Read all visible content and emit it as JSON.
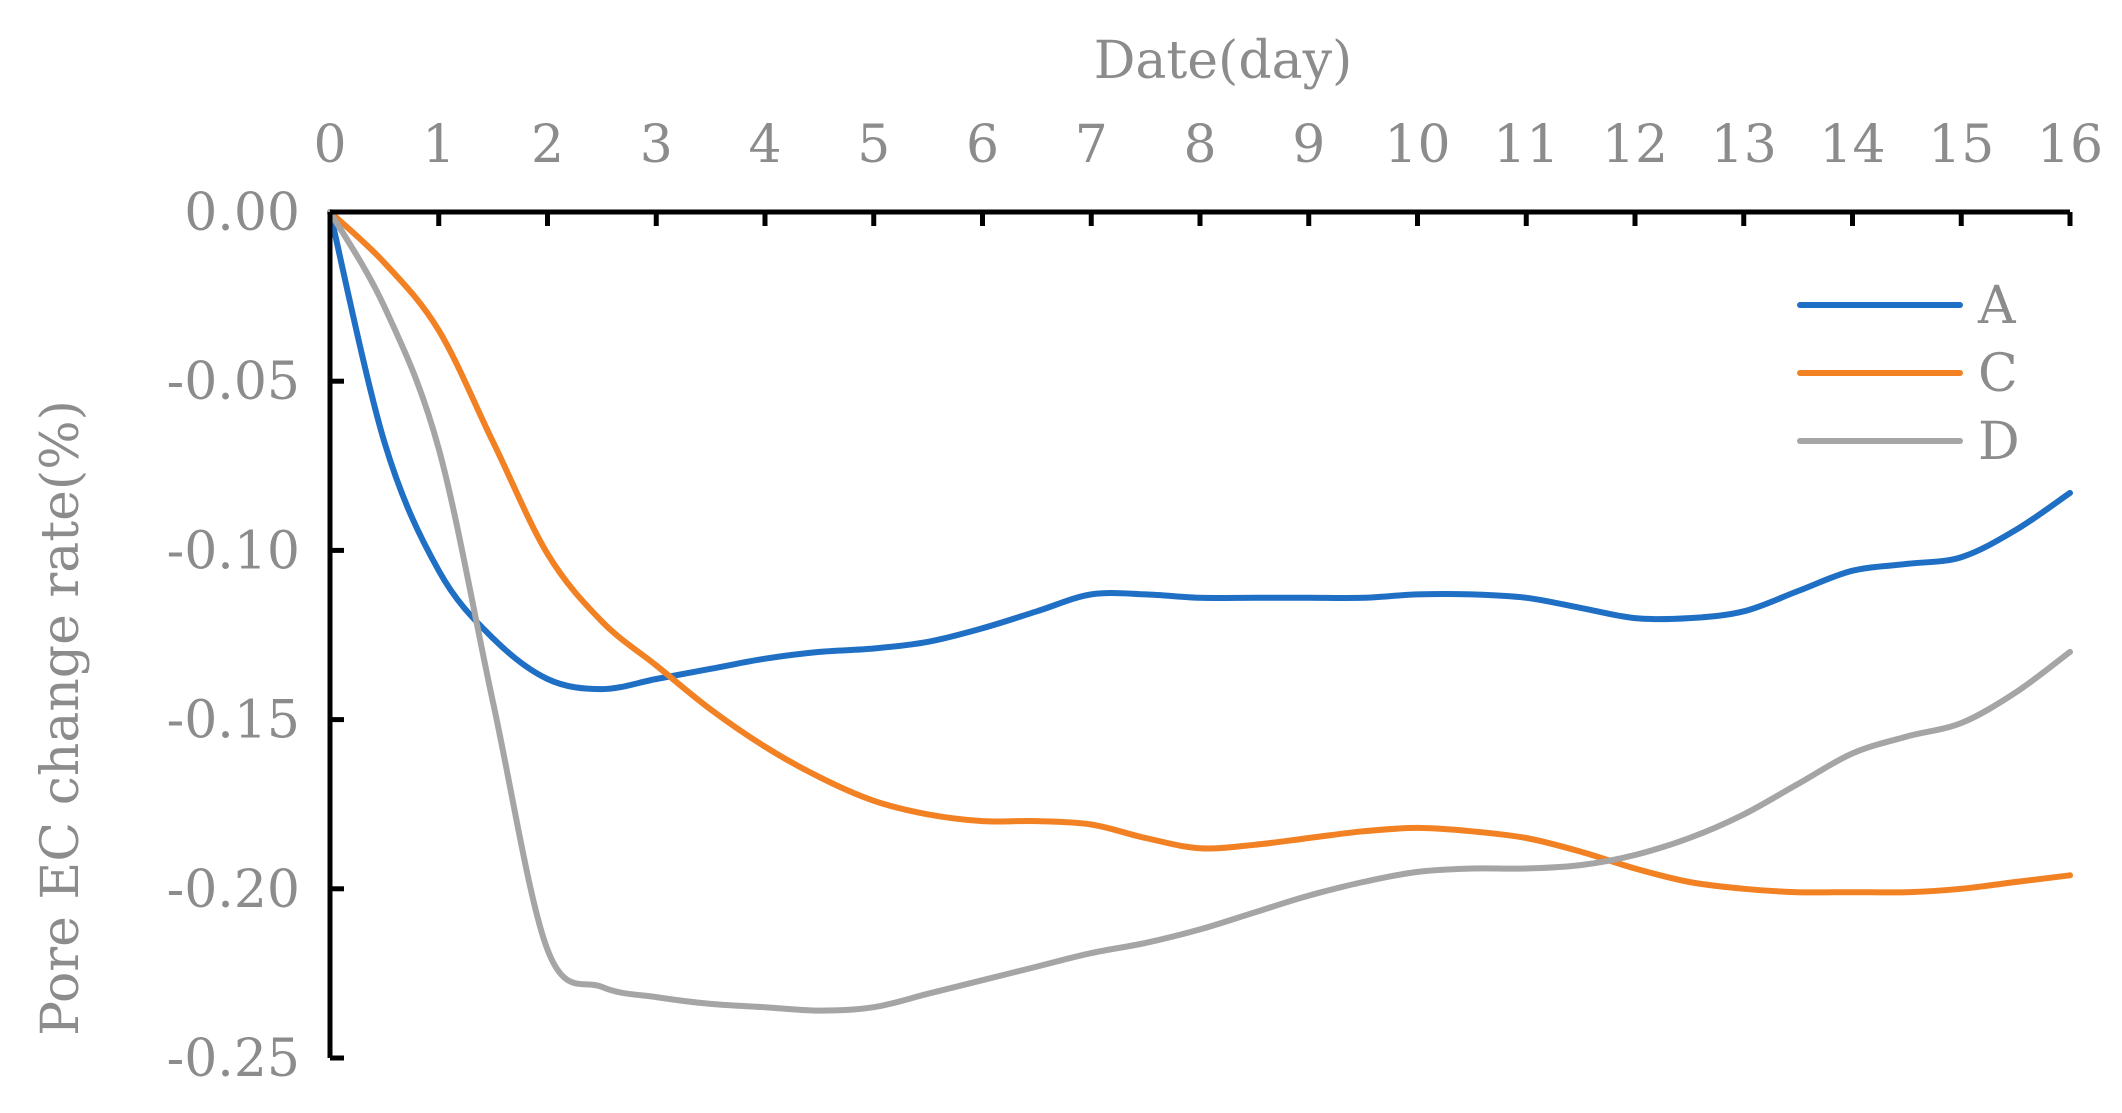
{
  "chart_data": {
    "type": "line",
    "xlabel": "Date(day)",
    "ylabel": "Pore EC change rate(%)",
    "xlim": [
      0,
      16
    ],
    "ylim": [
      -0.25,
      0.0
    ],
    "x_ticks": [
      "0",
      "1",
      "2",
      "3",
      "4",
      "5",
      "6",
      "7",
      "8",
      "9",
      "10",
      "11",
      "12",
      "13",
      "14",
      "15",
      "16"
    ],
    "y_ticks": [
      "0.00",
      "-0.05",
      "-0.10",
      "-0.15",
      "-0.20",
      "-0.25"
    ],
    "x_axis_position": "top",
    "grid": false,
    "legend": "right",
    "series": [
      {
        "name": "A",
        "color": "#1f6fc5",
        "x": [
          0,
          0.5,
          1,
          1.5,
          2,
          2.5,
          3,
          3.5,
          4,
          4.5,
          5,
          5.5,
          6,
          6.5,
          7,
          7.5,
          8,
          8.5,
          9,
          9.5,
          10,
          10.5,
          11,
          11.5,
          12,
          12.5,
          13,
          13.5,
          14,
          14.5,
          15,
          15.5,
          16
        ],
        "values": [
          0,
          -0.068,
          -0.106,
          -0.126,
          -0.138,
          -0.141,
          -0.138,
          -0.135,
          -0.132,
          -0.13,
          -0.129,
          -0.127,
          -0.123,
          -0.118,
          -0.113,
          -0.113,
          -0.114,
          -0.114,
          -0.114,
          -0.114,
          -0.113,
          -0.113,
          -0.114,
          -0.117,
          -0.12,
          -0.12,
          -0.118,
          -0.112,
          -0.106,
          -0.104,
          -0.102,
          -0.094,
          -0.083
        ]
      },
      {
        "name": "C",
        "color": "#f28124",
        "x": [
          0,
          0.5,
          1,
          1.5,
          2,
          2.5,
          3,
          3.5,
          4,
          4.5,
          5,
          5.5,
          6,
          6.5,
          7,
          7.5,
          8,
          8.5,
          9,
          9.5,
          10,
          10.5,
          11,
          11.5,
          12,
          12.5,
          13,
          13.5,
          14,
          14.5,
          15,
          15.5,
          16
        ],
        "values": [
          0,
          -0.015,
          -0.035,
          -0.068,
          -0.101,
          -0.121,
          -0.134,
          -0.147,
          -0.158,
          -0.167,
          -0.174,
          -0.178,
          -0.18,
          -0.18,
          -0.181,
          -0.185,
          -0.188,
          -0.187,
          -0.185,
          -0.183,
          -0.182,
          -0.183,
          -0.185,
          -0.189,
          -0.194,
          -0.198,
          -0.2,
          -0.201,
          -0.201,
          -0.201,
          -0.2,
          -0.198,
          -0.196
        ]
      },
      {
        "name": "D",
        "color": "#a5a5a5",
        "x": [
          0,
          0.5,
          1,
          1.5,
          2,
          2.5,
          3,
          3.5,
          4,
          4.5,
          5,
          5.5,
          6,
          6.5,
          7,
          7.5,
          8,
          8.5,
          9,
          9.5,
          10,
          10.5,
          11,
          11.5,
          12,
          12.5,
          13,
          13.5,
          14,
          14.5,
          15,
          15.5,
          16
        ],
        "values": [
          0,
          -0.028,
          -0.07,
          -0.145,
          -0.218,
          -0.229,
          -0.232,
          -0.234,
          -0.235,
          -0.236,
          -0.235,
          -0.231,
          -0.227,
          -0.223,
          -0.219,
          -0.216,
          -0.212,
          -0.207,
          -0.202,
          -0.198,
          -0.195,
          -0.194,
          -0.194,
          -0.193,
          -0.19,
          -0.185,
          -0.178,
          -0.169,
          -0.16,
          -0.155,
          -0.151,
          -0.142,
          -0.13
        ]
      }
    ]
  }
}
